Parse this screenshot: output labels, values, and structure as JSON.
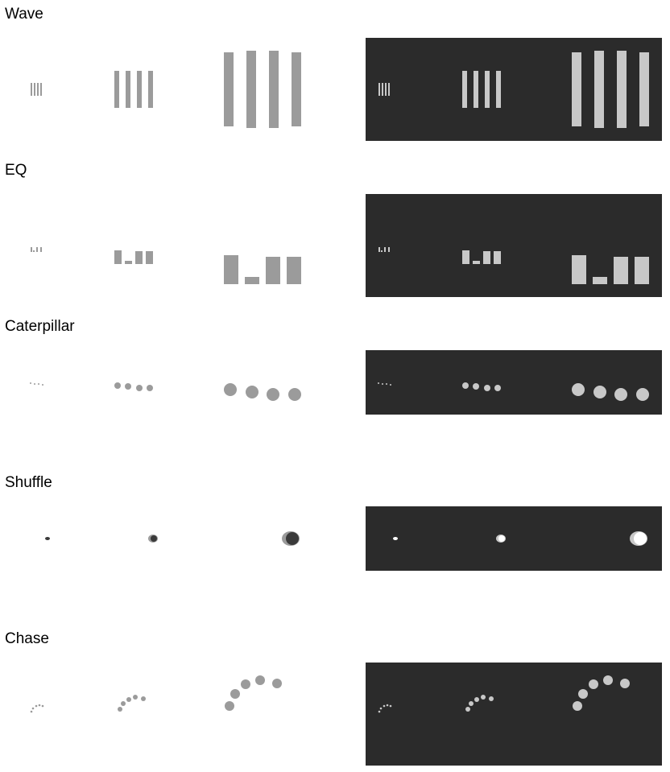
{
  "colors": {
    "light_mark": "#9b9b9b",
    "dark_mark": "#c8c8c8",
    "dark_bg": "#2b2b2b",
    "shuffle_light_core": "#3a3a3a",
    "shuffle_dark_core": "#ffffff"
  },
  "sections": [
    {
      "id": "wave",
      "title": "Wave"
    },
    {
      "id": "eq",
      "title": "EQ"
    },
    {
      "id": "caterpillar",
      "title": "Caterpillar"
    },
    {
      "id": "shuffle",
      "title": "Shuffle"
    },
    {
      "id": "chase",
      "title": "Chase"
    }
  ]
}
